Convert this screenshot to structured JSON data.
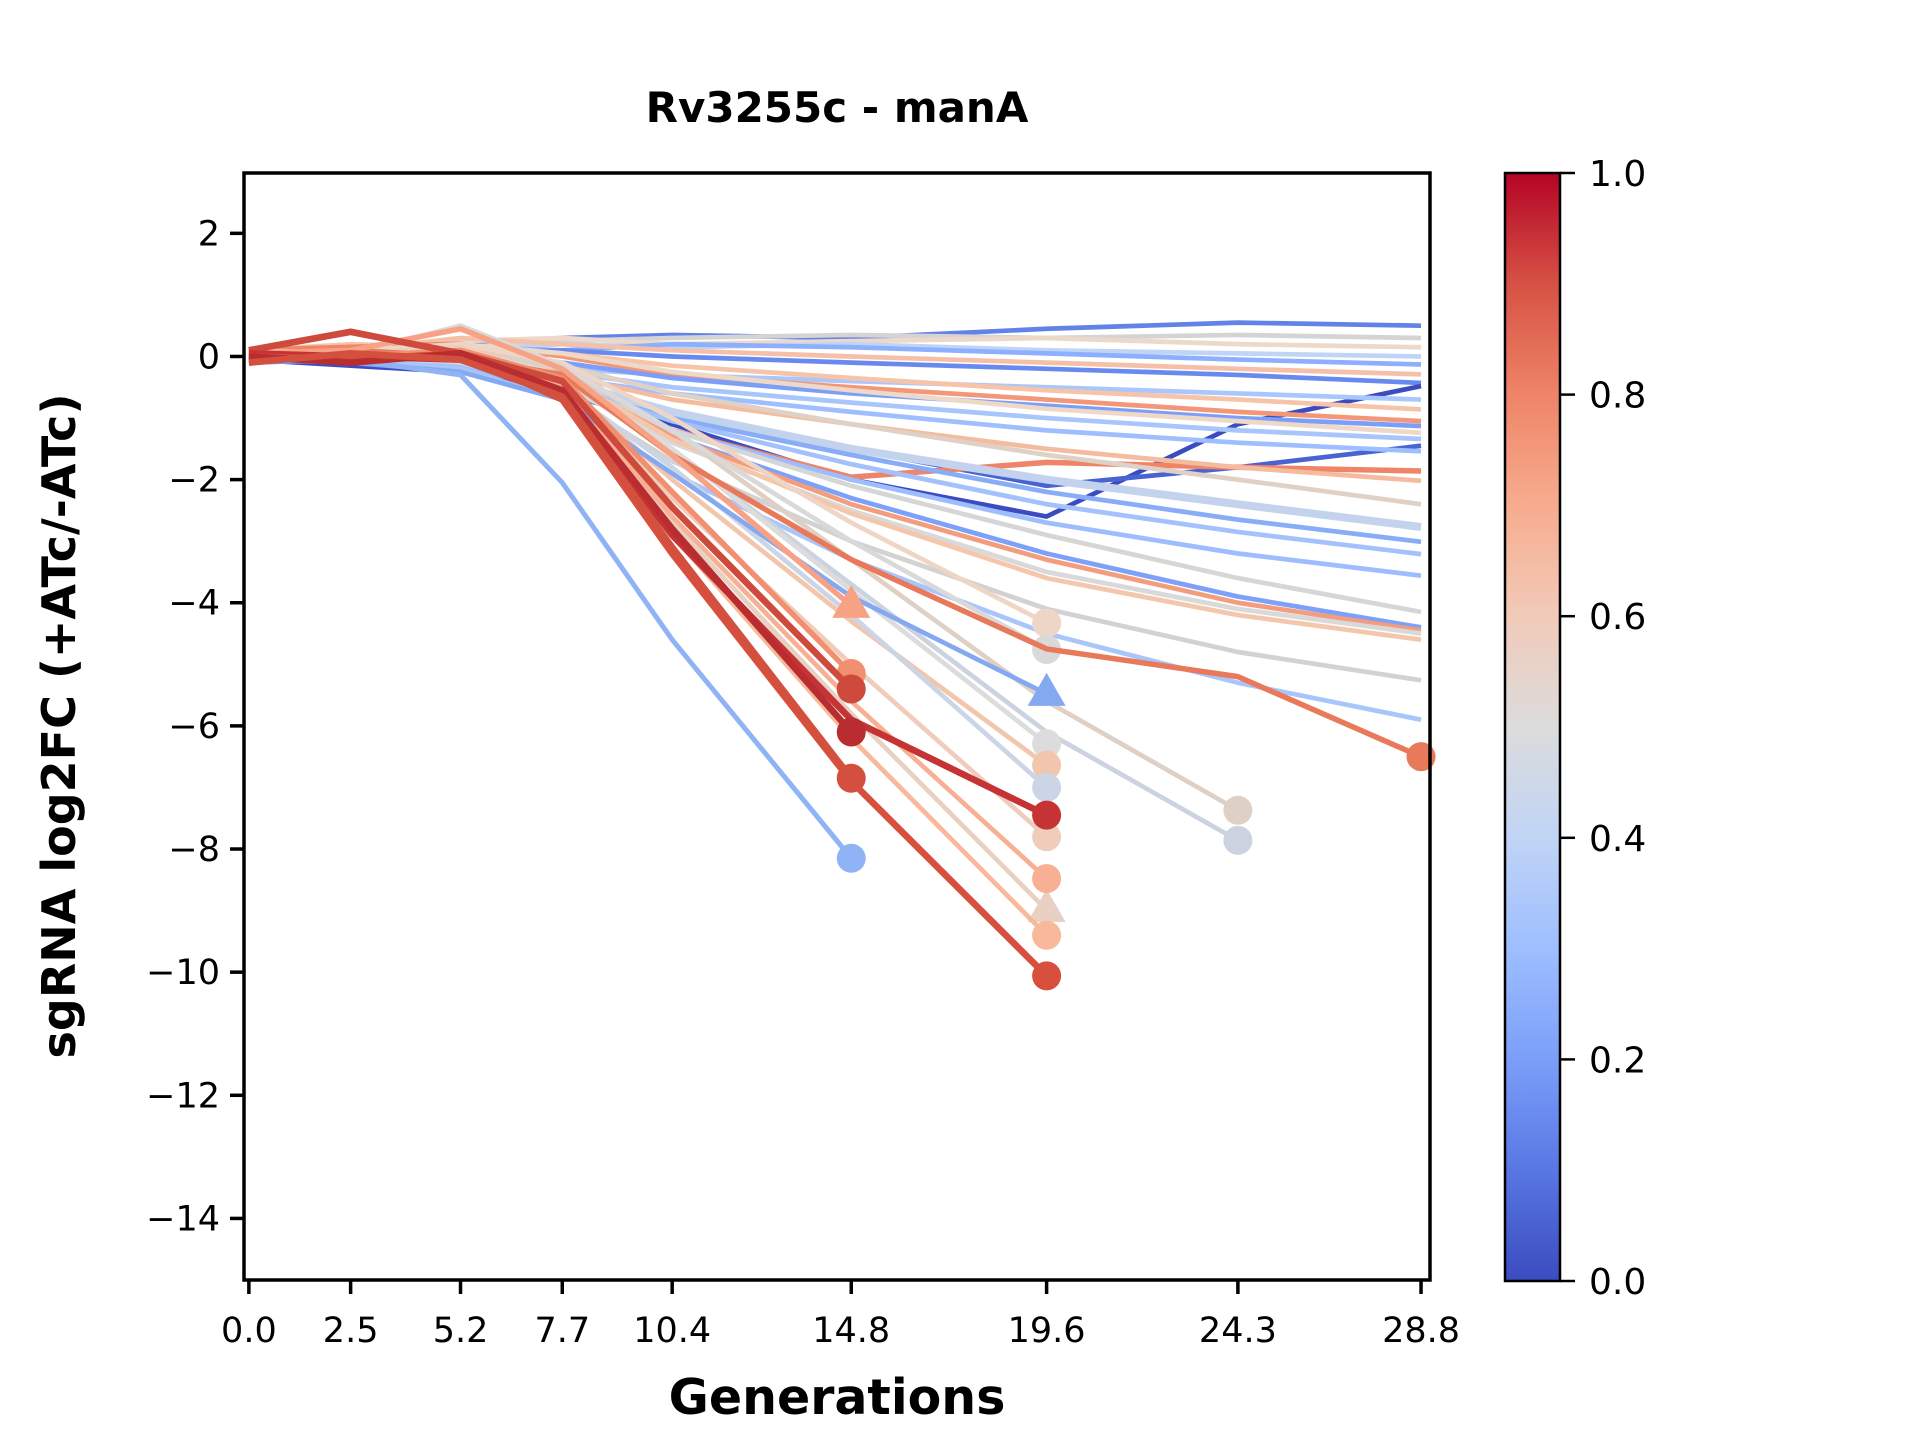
{
  "figure": {
    "title": "Rv3255c - manA",
    "xlabel": "Generations",
    "ylabel": "sgRNA log2FC (+ATc/-ATc)"
  },
  "chart_data": {
    "type": "line",
    "x": [
      0,
      2.5,
      5.2,
      7.7,
      10.4,
      14.8,
      19.6,
      24.3,
      28.8
    ],
    "x_tick_labels": [
      "0.0",
      "2.5",
      "5.2",
      "7.7",
      "10.4",
      "14.8",
      "19.6",
      "24.3",
      "28.8"
    ],
    "y_tick_values": [
      2,
      0,
      -2,
      -4,
      -6,
      -8,
      -10,
      -12,
      -14
    ],
    "y_tick_labels": [
      "2",
      "0",
      "−2",
      "−4",
      "−6",
      "−8",
      "−10",
      "−12",
      "−14"
    ],
    "xlim": [
      -0.12,
      29.02
    ],
    "ylim": [
      -15.0,
      2.98
    ],
    "grid": false,
    "legend": "none",
    "colorbar": {
      "cmap": "coolwarm",
      "tick_values": [
        1.0,
        0.8,
        0.6,
        0.4,
        0.2,
        0.0
      ],
      "tick_labels": [
        "1.0",
        "0.8",
        "0.6",
        "0.4",
        "0.2",
        "0.0"
      ],
      "stops": [
        [
          0.0,
          "#3b4cc0"
        ],
        [
          0.1,
          "#5977e3"
        ],
        [
          0.2,
          "#7b9ff9"
        ],
        [
          0.3,
          "#9ebeff"
        ],
        [
          0.4,
          "#c0d4f5"
        ],
        [
          0.5,
          "#dcdcdc"
        ],
        [
          0.6,
          "#f2cab9"
        ],
        [
          0.7,
          "#f7ac8e"
        ],
        [
          0.8,
          "#ee8468"
        ],
        [
          0.9,
          "#d65244"
        ],
        [
          1.0,
          "#b40426"
        ]
      ]
    },
    "series": [
      {
        "color": "#6282ea",
        "width": 4.7,
        "marker": null,
        "y": [
          0.0,
          0.1,
          0.2,
          0.3,
          0.35,
          0.3,
          0.45,
          0.55,
          0.5
        ]
      },
      {
        "color": "#d4d4d4",
        "width": 4.7,
        "marker": null,
        "y": [
          -0.1,
          0.0,
          0.15,
          0.25,
          0.3,
          0.35,
          0.3,
          0.35,
          0.3
        ]
      },
      {
        "color": "#ecd9c9",
        "width": 4.7,
        "marker": null,
        "y": [
          0.1,
          0.15,
          0.25,
          0.3,
          0.2,
          0.25,
          0.3,
          0.2,
          0.15
        ]
      },
      {
        "color": "#c0d4f5",
        "width": 4.7,
        "marker": null,
        "y": [
          0.0,
          -0.05,
          0.1,
          0.2,
          0.15,
          0.2,
          0.1,
          0.05,
          0.0
        ]
      },
      {
        "color": "#8caffe",
        "width": 4.7,
        "marker": null,
        "y": [
          -0.05,
          0.05,
          0.15,
          0.1,
          0.2,
          0.15,
          0.05,
          -0.05,
          -0.13
        ]
      },
      {
        "color": "#f5c0a7",
        "width": 4.7,
        "marker": null,
        "y": [
          0.05,
          0.1,
          0.3,
          0.2,
          0.1,
          0.0,
          -0.1,
          -0.2,
          -0.29
        ]
      },
      {
        "color": "#688aef",
        "width": 4.7,
        "marker": null,
        "y": [
          0.0,
          -0.1,
          0.05,
          0.1,
          0.0,
          -0.1,
          -0.2,
          -0.3,
          -0.43
        ]
      },
      {
        "color": "#3b4cc0",
        "width": 4.7,
        "marker": null,
        "y": [
          -0.05,
          -0.15,
          -0.25,
          -0.6,
          -1.1,
          -2.0,
          -2.6,
          -1.1,
          -0.48
        ]
      },
      {
        "color": "#aac7fd",
        "width": 4.7,
        "marker": null,
        "y": [
          0.0,
          0.05,
          -0.1,
          -0.2,
          -0.3,
          -0.4,
          -0.5,
          -0.6,
          -0.7
        ]
      },
      {
        "color": "#f6c4a8",
        "width": 4.7,
        "marker": null,
        "y": [
          0.1,
          0.2,
          0.15,
          0.05,
          -0.15,
          -0.35,
          -0.55,
          -0.7,
          -0.86
        ]
      },
      {
        "color": "#f39778",
        "width": 4.7,
        "marker": null,
        "y": [
          0.0,
          0.1,
          0.2,
          0.0,
          -0.3,
          -0.5,
          -0.7,
          -0.9,
          -1.05
        ]
      },
      {
        "color": "#7b9ff9",
        "width": 4.7,
        "marker": null,
        "y": [
          -0.1,
          -0.05,
          0.05,
          -0.1,
          -0.35,
          -0.6,
          -0.8,
          -1.0,
          -1.13
        ]
      },
      {
        "color": "#eed9c9",
        "width": 4.7,
        "marker": null,
        "y": [
          0.05,
          0.0,
          0.2,
          0.05,
          -0.25,
          -0.55,
          -0.85,
          -1.05,
          -1.24
        ]
      },
      {
        "color": "#a8c5fc",
        "width": 4.7,
        "marker": null,
        "y": [
          0.0,
          -0.1,
          -0.05,
          -0.25,
          -0.5,
          -0.75,
          -1.0,
          -1.2,
          -1.34
        ]
      },
      {
        "color": "#4a63d3",
        "width": 4.7,
        "marker": null,
        "y": [
          0.0,
          -0.05,
          -0.2,
          -0.5,
          -0.9,
          -1.5,
          -2.1,
          -1.8,
          -1.45
        ]
      },
      {
        "color": "#9ebeff",
        "width": 4.7,
        "marker": null,
        "y": [
          -0.05,
          0.0,
          -0.15,
          -0.35,
          -0.6,
          -0.9,
          -1.2,
          -1.4,
          -1.54
        ]
      },
      {
        "color": "#ee8468",
        "width": 5.5,
        "marker": null,
        "y": [
          0.1,
          0.15,
          0.2,
          -0.3,
          -1.2,
          -1.96,
          -1.72,
          -1.8,
          -1.86
        ]
      },
      {
        "color": "#f4bb9e",
        "width": 4.7,
        "marker": null,
        "y": [
          0.05,
          0.1,
          0.0,
          -0.3,
          -0.7,
          -1.1,
          -1.5,
          -1.8,
          -2.02
        ]
      },
      {
        "color": "#dfd1c5",
        "width": 4.7,
        "marker": null,
        "y": [
          0.0,
          0.05,
          0.15,
          -0.15,
          -0.6,
          -1.1,
          -1.6,
          -2.0,
          -2.4
        ]
      },
      {
        "color": "#c3d3ee",
        "width": 8,
        "marker": null,
        "y": [
          -0.05,
          0.0,
          -0.1,
          -0.4,
          -0.9,
          -1.5,
          -2.0,
          -2.4,
          -2.77
        ]
      },
      {
        "color": "#89acf7",
        "width": 4.7,
        "marker": null,
        "y": [
          0.0,
          -0.05,
          -0.2,
          -0.5,
          -1.0,
          -1.6,
          -2.2,
          -2.65,
          -3.01
        ]
      },
      {
        "color": "#a3c2fb",
        "width": 4.7,
        "marker": null,
        "y": [
          -0.1,
          0.0,
          -0.1,
          -0.45,
          -1.05,
          -1.75,
          -2.4,
          -2.85,
          -3.21
        ]
      },
      {
        "color": "#9dbdff",
        "width": 4.7,
        "marker": null,
        "y": [
          0.0,
          0.05,
          -0.15,
          -0.55,
          -1.2,
          -2.0,
          -2.7,
          -3.2,
          -3.56
        ]
      },
      {
        "color": "#d6d6d6",
        "width": 4.7,
        "marker": null,
        "y": [
          0.05,
          0.0,
          0.1,
          -0.4,
          -1.2,
          -2.1,
          -2.9,
          -3.6,
          -4.15
        ]
      },
      {
        "color": "#7da0f9",
        "width": 4.7,
        "marker": null,
        "y": [
          -0.05,
          -0.1,
          0.0,
          -0.5,
          -1.3,
          -2.3,
          -3.2,
          -3.9,
          -4.4
        ]
      },
      {
        "color": "#f29e7e",
        "width": 4.7,
        "marker": null,
        "y": [
          0.05,
          0.0,
          0.15,
          -0.35,
          -1.3,
          -2.4,
          -3.3,
          -4.0,
          -4.45
        ]
      },
      {
        "color": "#d9d9d9",
        "width": 4.7,
        "marker": null,
        "y": [
          0.0,
          0.1,
          0.05,
          -0.45,
          -1.4,
          -2.5,
          -3.5,
          -4.1,
          -4.5
        ]
      },
      {
        "color": "#f4c6ab",
        "width": 4.7,
        "marker": null,
        "y": [
          0.1,
          0.05,
          0.2,
          -0.3,
          -1.35,
          -2.55,
          -3.6,
          -4.2,
          -4.6
        ]
      },
      {
        "color": "#d2d2d2",
        "width": 4.7,
        "marker": null,
        "y": [
          -0.05,
          0.05,
          0.0,
          -0.6,
          -1.7,
          -3.0,
          -4.1,
          -4.8,
          -5.26
        ]
      },
      {
        "color": "#a9c6fb",
        "width": 4.7,
        "marker": null,
        "y": [
          0.0,
          -0.05,
          -0.2,
          -0.7,
          -1.9,
          -3.3,
          -4.5,
          -5.3,
          -5.9
        ]
      },
      {
        "color": "#ded0c4",
        "width": 4.7,
        "marker": "circle",
        "y": [
          0.0,
          0.05,
          0.1,
          -0.2,
          -1.2,
          -3.3,
          -5.6,
          -7.37
        ]
      },
      {
        "color": "#ccd3e0",
        "width": 4.7,
        "marker": "circle",
        "y": [
          -0.05,
          0.0,
          -0.05,
          -0.35,
          -1.5,
          -3.7,
          -6.1,
          -7.86
        ]
      },
      {
        "color": "#eed5c5",
        "width": 4.7,
        "marker": "circle",
        "y": [
          0.05,
          0.1,
          0.2,
          -0.1,
          -1.0,
          -2.7,
          -4.33
        ]
      },
      {
        "color": "#d9d9d9",
        "width": 4.7,
        "marker": "circle",
        "y": [
          0.0,
          0.05,
          0.5,
          -0.15,
          -1.2,
          -3.0,
          -4.76
        ]
      },
      {
        "color": "#dcdcdc",
        "width": 4.7,
        "marker": "circle",
        "y": [
          0.05,
          0.0,
          0.1,
          -0.3,
          -1.5,
          -3.8,
          -6.29
        ]
      },
      {
        "color": "#f2c6ad",
        "width": 4.7,
        "marker": "circle",
        "y": [
          0.0,
          0.1,
          0.05,
          -0.45,
          -2.0,
          -4.3,
          -6.64
        ]
      },
      {
        "color": "#ccd5e6",
        "width": 4.7,
        "marker": "circle",
        "y": [
          -0.05,
          0.0,
          -0.1,
          -0.5,
          -1.8,
          -4.2,
          -7.0
        ]
      },
      {
        "color": "#f0cdbb",
        "width": 4.7,
        "marker": "circle",
        "y": [
          0.1,
          0.05,
          0.15,
          -0.4,
          -2.3,
          -5.0,
          -7.8
        ]
      },
      {
        "color": "#e8d0c2",
        "width": 4.7,
        "marker": "triangle",
        "y": [
          0.05,
          0.0,
          0.1,
          -0.55,
          -2.7,
          -5.8,
          -8.99
        ]
      },
      {
        "color": "#f7b093",
        "width": 4.7,
        "marker": "circle",
        "y": [
          0.0,
          -0.05,
          0.1,
          -0.5,
          -2.6,
          -5.6,
          -8.48
        ]
      },
      {
        "color": "#f8b89a",
        "width": 4.7,
        "marker": "circle",
        "y": [
          -0.05,
          0.05,
          0.0,
          -0.65,
          -2.9,
          -6.2,
          -9.4
        ]
      },
      {
        "color": "#84a9f0",
        "width": 4.7,
        "marker": "triangle",
        "y": [
          0.0,
          -0.1,
          -0.25,
          -0.7,
          -1.9,
          -3.9,
          -5.48
        ]
      },
      {
        "color": "#8fb3f5",
        "width": 5,
        "marker": "circle",
        "y": [
          0.0,
          -0.05,
          -0.3,
          -2.05,
          -4.6,
          -8.15
        ]
      },
      {
        "color": "#e8795a",
        "width": 5.5,
        "marker": "circle",
        "y": [
          0.05,
          0.1,
          0.0,
          -0.3,
          -1.6,
          -3.3,
          -4.75,
          -5.2,
          -6.5
        ]
      },
      {
        "color": "#f7a285",
        "width": 5.5,
        "marker": "triangle",
        "y": [
          0.05,
          0.1,
          0.45,
          -0.2,
          -1.6,
          -4.05
        ]
      },
      {
        "color": "#f09070",
        "width": 5.5,
        "marker": "circle",
        "y": [
          -0.05,
          0.0,
          0.1,
          -0.35,
          -2.2,
          -5.15
        ]
      },
      {
        "color": "#cd4a3c",
        "width": 6.7,
        "marker": "circle",
        "y": [
          0.1,
          0.4,
          0.05,
          -0.4,
          -2.45,
          -5.4
        ]
      },
      {
        "color": "#c53334",
        "width": 6.7,
        "marker": "circle",
        "y": [
          0.05,
          0.0,
          -0.05,
          -0.6,
          -2.9,
          -5.9,
          -7.45
        ]
      },
      {
        "color": "#d94f3d",
        "width": 6.7,
        "marker": "circle",
        "y": [
          0.0,
          -0.05,
          0.05,
          -0.7,
          -3.2,
          -6.9,
          -10.06
        ]
      },
      {
        "color": "#b92c30",
        "width": 6.7,
        "marker": "circle",
        "y": [
          0.0,
          -0.1,
          0.05,
          -0.55,
          -2.8,
          -6.1
        ]
      },
      {
        "color": "#d3503e",
        "width": 6.7,
        "marker": "circle",
        "y": [
          -0.1,
          0.05,
          -0.05,
          -0.65,
          -3.1,
          -6.85
        ]
      }
    ]
  }
}
